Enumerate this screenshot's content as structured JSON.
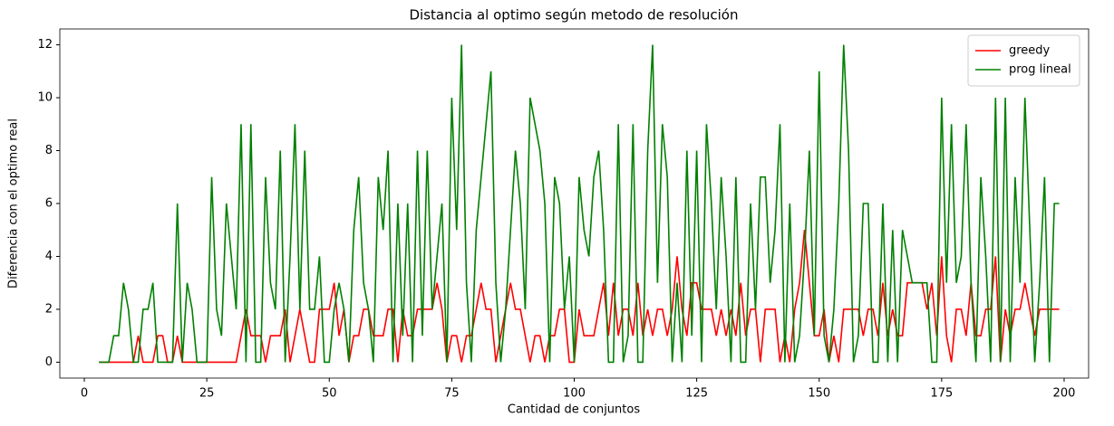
{
  "chart_data": {
    "type": "line",
    "title": "Distancia al optimo según metodo de resolución",
    "x_label": "Cantidad de conjuntos",
    "y_label": "Diferencia con el optimo real",
    "xlim": [
      -5,
      205
    ],
    "ylim": [
      -0.6,
      12.6
    ],
    "xticks": [
      0,
      25,
      50,
      75,
      100,
      125,
      150,
      175,
      200
    ],
    "yticks": [
      0,
      2,
      4,
      6,
      8,
      10,
      12
    ],
    "legend": "upper right",
    "x": [
      3,
      4,
      5,
      6,
      7,
      8,
      9,
      10,
      11,
      12,
      13,
      14,
      15,
      16,
      17,
      18,
      19,
      20,
      21,
      22,
      23,
      24,
      25,
      26,
      27,
      28,
      29,
      30,
      31,
      32,
      33,
      34,
      35,
      36,
      37,
      38,
      39,
      40,
      41,
      42,
      43,
      44,
      45,
      46,
      47,
      48,
      49,
      50,
      51,
      52,
      53,
      54,
      55,
      56,
      57,
      58,
      59,
      60,
      61,
      62,
      63,
      64,
      65,
      66,
      67,
      68,
      69,
      70,
      71,
      72,
      73,
      74,
      75,
      76,
      77,
      78,
      79,
      80,
      81,
      82,
      83,
      84,
      85,
      86,
      87,
      88,
      89,
      90,
      91,
      92,
      93,
      94,
      95,
      96,
      97,
      98,
      99,
      100,
      101,
      102,
      103,
      104,
      105,
      106,
      107,
      108,
      109,
      110,
      111,
      112,
      113,
      114,
      115,
      116,
      117,
      118,
      119,
      120,
      121,
      122,
      123,
      124,
      125,
      126,
      127,
      128,
      129,
      130,
      131,
      132,
      133,
      134,
      135,
      136,
      137,
      138,
      139,
      140,
      141,
      142,
      143,
      144,
      145,
      146,
      147,
      148,
      149,
      150,
      151,
      152,
      153,
      154,
      155,
      156,
      157,
      158,
      159,
      160,
      161,
      162,
      163,
      164,
      165,
      166,
      167,
      168,
      169,
      170,
      171,
      172,
      173,
      174,
      175,
      176,
      177,
      178,
      179,
      180,
      181,
      182,
      183,
      184,
      185,
      186,
      187,
      188,
      189,
      190,
      191,
      192,
      193,
      194,
      195,
      196,
      197,
      198,
      199
    ],
    "series": [
      {
        "name": "greedy",
        "color": "#ff0000",
        "values": [
          0,
          0,
          0,
          0,
          0,
          0,
          0,
          0,
          1,
          0,
          0,
          0,
          1,
          1,
          0,
          0,
          1,
          0,
          0,
          0,
          0,
          0,
          0,
          0,
          0,
          0,
          0,
          0,
          0,
          1,
          2,
          1,
          1,
          1,
          0,
          1,
          1,
          1,
          2,
          0,
          1,
          2,
          1,
          0,
          0,
          2,
          2,
          2,
          3,
          1,
          2,
          0,
          1,
          1,
          2,
          2,
          1,
          1,
          1,
          2,
          2,
          0,
          2,
          1,
          1,
          2,
          2,
          2,
          2,
          3,
          2,
          0,
          1,
          1,
          0,
          1,
          1,
          2,
          3,
          2,
          2,
          0,
          1,
          2,
          3,
          2,
          2,
          1,
          0,
          1,
          1,
          0,
          1,
          1,
          2,
          2,
          0,
          0,
          2,
          1,
          1,
          1,
          2,
          3,
          1,
          3,
          1,
          2,
          2,
          1,
          3,
          1,
          2,
          1,
          2,
          2,
          1,
          2,
          4,
          2,
          1,
          3,
          3,
          2,
          2,
          2,
          1,
          2,
          1,
          2,
          1,
          3,
          1,
          2,
          2,
          0,
          2,
          2,
          2,
          0,
          1,
          0,
          2,
          3,
          5,
          3,
          1,
          1,
          2,
          0,
          1,
          0,
          2,
          2,
          2,
          2,
          1,
          2,
          2,
          1,
          3,
          1,
          2,
          1,
          1,
          3,
          3,
          3,
          3,
          2,
          3,
          1,
          4,
          1,
          0,
          2,
          2,
          1,
          3,
          1,
          1,
          2,
          2,
          4,
          0,
          2,
          1,
          2,
          2,
          3,
          2,
          1,
          2,
          2,
          2,
          2,
          2
        ]
      },
      {
        "name": "prog lineal",
        "color": "#008000",
        "values": [
          0,
          0,
          0,
          1,
          1,
          3,
          2,
          0,
          0,
          2,
          2,
          3,
          0,
          0,
          0,
          0,
          6,
          0,
          3,
          2,
          0,
          0,
          0,
          7,
          2,
          1,
          6,
          4,
          2,
          9,
          0,
          9,
          0,
          0,
          7,
          3,
          2,
          8,
          0,
          4,
          9,
          2,
          8,
          2,
          2,
          4,
          0,
          0,
          2,
          3,
          2,
          0,
          5,
          7,
          3,
          2,
          0,
          7,
          5,
          8,
          0,
          6,
          1,
          6,
          0,
          8,
          1,
          8,
          2,
          4,
          6,
          0,
          10,
          5,
          12,
          3,
          0,
          5,
          7,
          9,
          11,
          3,
          0,
          2,
          5,
          8,
          6,
          2,
          10,
          9,
          8,
          6,
          0,
          7,
          6,
          2,
          4,
          0,
          7,
          5,
          4,
          7,
          8,
          5,
          0,
          0,
          9,
          0,
          1,
          9,
          0,
          0,
          8,
          12,
          3,
          9,
          7,
          0,
          3,
          0,
          8,
          1,
          8,
          0,
          9,
          6,
          2,
          7,
          4,
          0,
          7,
          0,
          0,
          6,
          2,
          7,
          7,
          3,
          5,
          9,
          0,
          6,
          0,
          1,
          4,
          8,
          1,
          11,
          1,
          0,
          2,
          6,
          12,
          8,
          0,
          1,
          6,
          6,
          0,
          0,
          6,
          0,
          5,
          0,
          5,
          4,
          3,
          3,
          3,
          3,
          0,
          0,
          10,
          3,
          9,
          3,
          4,
          9,
          3,
          0,
          7,
          4,
          0,
          10,
          0,
          10,
          0,
          7,
          3,
          10,
          5,
          0,
          3,
          7,
          0,
          6,
          6
        ]
      }
    ]
  }
}
